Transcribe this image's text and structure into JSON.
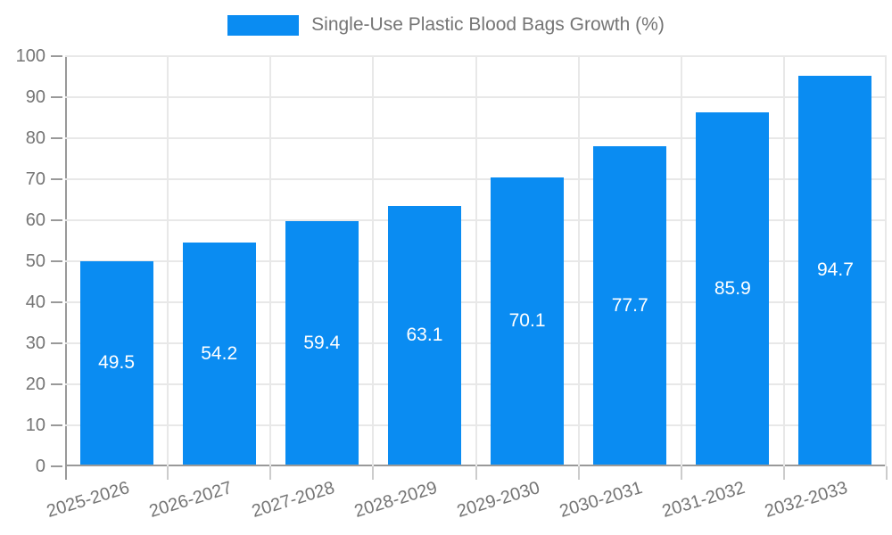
{
  "chart_data": {
    "type": "bar",
    "legend_label": "Single-Use Plastic Blood Bags Growth (%)",
    "categories": [
      "2025-2026",
      "2026-2027",
      "2027-2028",
      "2028-2029",
      "2029-2030",
      "2030-2031",
      "2031-2032",
      "2032-2033"
    ],
    "values": [
      49.5,
      54.2,
      59.4,
      63.1,
      70.1,
      77.7,
      85.9,
      94.7
    ],
    "ylim": [
      0,
      100
    ],
    "ytick_step": 10,
    "ytick_labels": [
      "0",
      "10",
      "20",
      "30",
      "40",
      "50",
      "60",
      "70",
      "80",
      "90",
      "100"
    ],
    "grid": "both",
    "legend_position": "top-center",
    "value_labels_inside_bars": true,
    "colors": {
      "bar": "#0a8cf2",
      "value_label": "#ffffff",
      "axis": "#999999",
      "gridline": "#e8e8e8",
      "tick": "#cccccc",
      "text": "#757575"
    }
  }
}
